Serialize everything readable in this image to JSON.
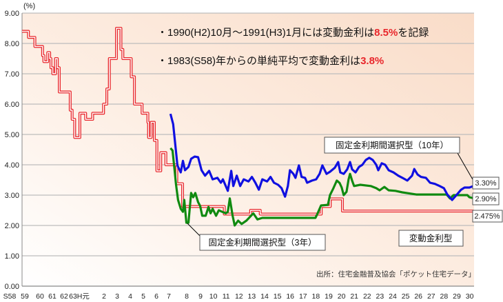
{
  "chart_data": {
    "type": "line",
    "yunit": "(%)",
    "ylim": [
      0,
      9
    ],
    "yticks": [
      "0.00",
      "1.00",
      "2.00",
      "3.00",
      "4.00",
      "5.00",
      "6.00",
      "7.00",
      "8.00",
      "9.00"
    ],
    "xlim": [
      1983,
      2018.2
    ],
    "xticks": [
      {
        "label": "S58",
        "year": 1983
      },
      {
        "label": "59",
        "year": 1984
      },
      {
        "label": "60",
        "year": 1985
      },
      {
        "label": "61",
        "year": 1986
      },
      {
        "label": "62",
        "year": 1987
      },
      {
        "label": "63H元",
        "year": 1988
      },
      {
        "label": "2",
        "year": 1990
      },
      {
        "label": "3",
        "year": 1991
      },
      {
        "label": "4",
        "year": 1992
      },
      {
        "label": "5",
        "year": 1993
      },
      {
        "label": "6",
        "year": 1994
      },
      {
        "label": "7",
        "year": 1995
      },
      {
        "label": "8",
        "year": 1996
      },
      {
        "label": "9",
        "year": 1997
      },
      {
        "label": "10",
        "year": 1998
      },
      {
        "label": "11",
        "year": 1999
      },
      {
        "label": "12",
        "year": 2000
      },
      {
        "label": "13",
        "year": 2001
      },
      {
        "label": "14",
        "year": 2002
      },
      {
        "label": "15",
        "year": 2003
      },
      {
        "label": "16",
        "year": 2004
      },
      {
        "label": "17",
        "year": 2005
      },
      {
        "label": "18",
        "year": 2006
      },
      {
        "label": "19",
        "year": 2007
      },
      {
        "label": "20",
        "year": 2008
      },
      {
        "label": "21",
        "year": 2009
      },
      {
        "label": "22",
        "year": 2010
      },
      {
        "label": "23",
        "year": 2011
      },
      {
        "label": "24",
        "year": 2012
      },
      {
        "label": "25",
        "year": 2013
      },
      {
        "label": "26",
        "year": 2014
      },
      {
        "label": "27",
        "year": 2015
      },
      {
        "label": "28",
        "year": 2016
      },
      {
        "label": "29",
        "year": 2017
      },
      {
        "label": "30",
        "year": 2018
      }
    ],
    "grid": true,
    "series": [
      {
        "name": "変動金利型",
        "color": "#e8262b",
        "step": true,
        "end_label": "2.475%",
        "points": [
          [
            1983,
            8.4
          ],
          [
            1983.5,
            8.2
          ],
          [
            1984.0,
            7.9
          ],
          [
            1984.6,
            7.6
          ],
          [
            1984.7,
            7.4
          ],
          [
            1985.0,
            7.7
          ],
          [
            1985.15,
            7.5
          ],
          [
            1985.25,
            7.2
          ],
          [
            1985.4,
            7.0
          ],
          [
            1985.6,
            7.5
          ],
          [
            1985.75,
            7.2
          ],
          [
            1985.9,
            6.4
          ],
          [
            1986.75,
            5.8
          ],
          [
            1986.9,
            5.5
          ],
          [
            1987.1,
            4.9
          ],
          [
            1987.5,
            5.7
          ],
          [
            1987.95,
            5.5
          ],
          [
            1988.5,
            5.7
          ],
          [
            1989.35,
            6.0
          ],
          [
            1989.6,
            6.5
          ],
          [
            1989.8,
            7.5
          ],
          [
            1990.35,
            8.5
          ],
          [
            1990.7,
            7.8
          ],
          [
            1990.85,
            7.5
          ],
          [
            1991.5,
            6.9
          ],
          [
            1991.75,
            6.0
          ],
          [
            1992.35,
            5.7
          ],
          [
            1992.8,
            5.4
          ],
          [
            1992.85,
            4.9
          ],
          [
            1993.05,
            5.4
          ],
          [
            1993.3,
            4.8
          ],
          [
            1993.5,
            3.8
          ],
          [
            1993.8,
            4.4
          ],
          [
            1994.2,
            4.0
          ],
          [
            1995.05,
            3.375
          ],
          [
            1995.5,
            2.625
          ],
          [
            1998.75,
            2.375
          ],
          [
            2000.8,
            2.5
          ],
          [
            2001.55,
            2.375
          ],
          [
            2006.3,
            2.625
          ],
          [
            2007.0,
            2.875
          ],
          [
            2007.95,
            2.475
          ],
          [
            2018.16,
            2.475
          ]
        ]
      },
      {
        "name": "固定金利期間選択型（10年）",
        "color": "#1010e0",
        "end_label": "3.30%",
        "points": [
          [
            1994.56,
            5.68
          ],
          [
            1994.77,
            5.34
          ],
          [
            1995.1,
            3.98
          ],
          [
            1995.36,
            3.75
          ],
          [
            1995.53,
            4.13
          ],
          [
            1995.69,
            3.82
          ],
          [
            1995.96,
            3.93
          ],
          [
            1996.17,
            4.2
          ],
          [
            1996.44,
            4.27
          ],
          [
            1996.71,
            4.25
          ],
          [
            1996.98,
            3.82
          ],
          [
            1997.25,
            3.64
          ],
          [
            1997.57,
            3.8
          ],
          [
            1997.84,
            3.52
          ],
          [
            1998.21,
            3.57
          ],
          [
            1998.48,
            3.41
          ],
          [
            1998.64,
            3.52
          ],
          [
            1999.02,
            3.14
          ],
          [
            1999.29,
            3.8
          ],
          [
            1999.45,
            3.3
          ],
          [
            1999.72,
            3.64
          ],
          [
            1999.99,
            3.3
          ],
          [
            2000.26,
            3.52
          ],
          [
            2000.63,
            3.45
          ],
          [
            2000.9,
            3.6
          ],
          [
            2001.17,
            3.41
          ],
          [
            2001.44,
            3.18
          ],
          [
            2001.71,
            3.52
          ],
          [
            2002.08,
            3.45
          ],
          [
            2002.35,
            3.6
          ],
          [
            2002.62,
            3.41
          ],
          [
            2002.94,
            3.34
          ],
          [
            2003.21,
            3.23
          ],
          [
            2003.48,
            2.95
          ],
          [
            2003.7,
            3.3
          ],
          [
            2003.86,
            3.82
          ],
          [
            2004.13,
            3.7
          ],
          [
            2004.29,
            3.57
          ],
          [
            2004.56,
            3.98
          ],
          [
            2004.77,
            3.6
          ],
          [
            2005.04,
            3.57
          ],
          [
            2005.2,
            3.41
          ],
          [
            2005.58,
            3.48
          ],
          [
            2005.9,
            3.52
          ],
          [
            2006.17,
            3.7
          ],
          [
            2006.39,
            3.98
          ],
          [
            2006.71,
            3.7
          ],
          [
            2006.98,
            3.77
          ],
          [
            2007.35,
            3.9
          ],
          [
            2007.62,
            4.09
          ],
          [
            2007.78,
            3.75
          ],
          [
            2008.05,
            3.7
          ],
          [
            2008.32,
            3.85
          ],
          [
            2008.54,
            4.09
          ],
          [
            2008.7,
            3.85
          ],
          [
            2008.97,
            3.75
          ],
          [
            2009.24,
            3.93
          ],
          [
            2009.5,
            4.0
          ],
          [
            2009.77,
            4.16
          ],
          [
            2010.04,
            4.23
          ],
          [
            2010.31,
            4.16
          ],
          [
            2010.58,
            4.0
          ],
          [
            2010.74,
            3.82
          ],
          [
            2011.01,
            4.05
          ],
          [
            2011.28,
            4.0
          ],
          [
            2011.55,
            3.82
          ],
          [
            2011.92,
            3.75
          ],
          [
            2012.3,
            3.64
          ],
          [
            2012.62,
            3.57
          ],
          [
            2013.0,
            3.48
          ],
          [
            2013.37,
            3.64
          ],
          [
            2013.54,
            3.86
          ],
          [
            2013.8,
            3.68
          ],
          [
            2014.07,
            3.6
          ],
          [
            2014.45,
            3.57
          ],
          [
            2014.77,
            3.41
          ],
          [
            2015.15,
            3.37
          ],
          [
            2015.52,
            3.3
          ],
          [
            2015.85,
            3.23
          ],
          [
            2016.12,
            3.02
          ],
          [
            2016.49,
            2.84
          ],
          [
            2016.87,
            3.02
          ],
          [
            2017.19,
            3.18
          ],
          [
            2017.46,
            3.25
          ],
          [
            2017.84,
            3.25
          ],
          [
            2018.16,
            3.3
          ]
        ]
      },
      {
        "name": "固定金利期間選択型（3年）",
        "color": "#108a10",
        "end_label": "2.90%",
        "points": [
          [
            1994.56,
            4.55
          ],
          [
            1994.72,
            4.47
          ],
          [
            1994.88,
            3.82
          ],
          [
            1994.99,
            3.36
          ],
          [
            1995.15,
            2.84
          ],
          [
            1995.36,
            2.55
          ],
          [
            1995.53,
            2.45
          ],
          [
            1995.63,
            2.84
          ],
          [
            1995.8,
            2.09
          ],
          [
            1995.96,
            2.09
          ],
          [
            1996.17,
            3.07
          ],
          [
            1996.33,
            2.93
          ],
          [
            1996.49,
            3.07
          ],
          [
            1996.71,
            2.77
          ],
          [
            1996.87,
            2.64
          ],
          [
            1997.03,
            2.32
          ],
          [
            1997.3,
            2.32
          ],
          [
            1997.52,
            2.61
          ],
          [
            1997.68,
            2.4
          ],
          [
            1997.84,
            2.55
          ],
          [
            1998.11,
            2.32
          ],
          [
            1998.32,
            2.5
          ],
          [
            1998.59,
            2.45
          ],
          [
            1998.86,
            2.4
          ],
          [
            1999.02,
            2.45
          ],
          [
            1999.18,
            2.89
          ],
          [
            1999.4,
            2.32
          ],
          [
            1999.56,
            2.0
          ],
          [
            1999.83,
            2.16
          ],
          [
            2000.1,
            2.05
          ],
          [
            2000.47,
            2.16
          ],
          [
            2000.63,
            2.23
          ],
          [
            2001.01,
            2.4
          ],
          [
            2001.33,
            2.2
          ],
          [
            2001.71,
            2.25
          ],
          [
            2005.85,
            2.25
          ],
          [
            2006.01,
            2.39
          ],
          [
            2006.28,
            2.66
          ],
          [
            2006.82,
            2.68
          ],
          [
            2006.98,
            3.0
          ],
          [
            2007.25,
            3.23
          ],
          [
            2007.51,
            3.48
          ],
          [
            2007.73,
            3.4
          ],
          [
            2007.89,
            3.25
          ],
          [
            2008.05,
            3.0
          ],
          [
            2008.27,
            3.11
          ],
          [
            2008.43,
            3.52
          ],
          [
            2008.54,
            3.7
          ],
          [
            2008.7,
            3.48
          ],
          [
            2008.86,
            3.3
          ],
          [
            2009.34,
            3.34
          ],
          [
            2010.15,
            3.3
          ],
          [
            2010.58,
            3.23
          ],
          [
            2010.85,
            3.16
          ],
          [
            2011.22,
            3.27
          ],
          [
            2011.55,
            3.16
          ],
          [
            2012.08,
            3.14
          ],
          [
            2012.62,
            3.09
          ],
          [
            2013.7,
            3.02
          ],
          [
            2016.06,
            3.02
          ],
          [
            2016.33,
            2.89
          ],
          [
            2016.6,
            3.0
          ],
          [
            2017.68,
            3.0
          ],
          [
            2017.84,
            2.93
          ],
          [
            2018.16,
            2.9
          ]
        ]
      }
    ],
    "annotations": {
      "note1_pre": "・1990(H2)10月～1991(H3)1月には変動金利は",
      "note1_hl": "8.5%",
      "note1_post": "を記録",
      "note2_pre": "・1983(S58)年からの単純平均で変動金利は",
      "note2_hl": "3.8%",
      "highlight_color": "#e8262b",
      "source": "出所：住宅金融普及協会「ポケット住宅データ」"
    }
  }
}
